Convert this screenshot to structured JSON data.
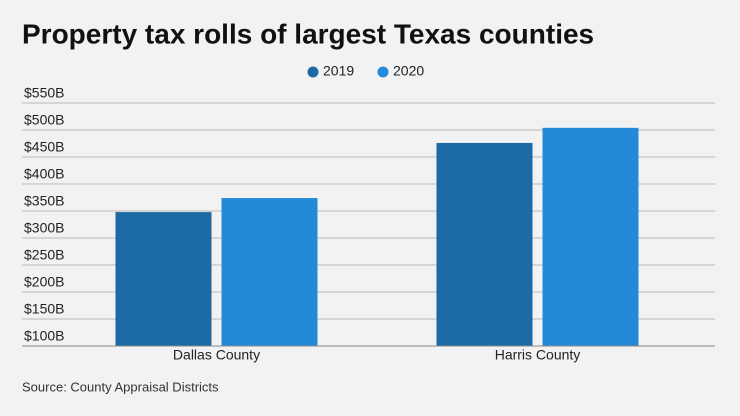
{
  "chart_data": {
    "type": "bar",
    "title": "Property tax rolls of largest Texas counties",
    "source": "Source: County Appraisal Districts",
    "categories": [
      "Dallas County",
      "Harris County"
    ],
    "series": [
      {
        "name": "2019",
        "color": "#1b6aa5",
        "values": [
          348,
          476
        ]
      },
      {
        "name": "2020",
        "color": "#238ad9",
        "values": [
          374,
          504
        ]
      }
    ],
    "ylim": [
      100,
      550
    ],
    "yticks": [
      {
        "value": 100,
        "label": "$100B"
      },
      {
        "value": 150,
        "label": "$150B"
      },
      {
        "value": 200,
        "label": "$200B"
      },
      {
        "value": 250,
        "label": "$250B"
      },
      {
        "value": 300,
        "label": "$300B"
      },
      {
        "value": 350,
        "label": "$350B"
      },
      {
        "value": 400,
        "label": "$400B"
      },
      {
        "value": 450,
        "label": "$450B"
      },
      {
        "value": 500,
        "label": "$500B"
      },
      {
        "value": 550,
        "label": "$550B"
      }
    ],
    "grid": true
  }
}
